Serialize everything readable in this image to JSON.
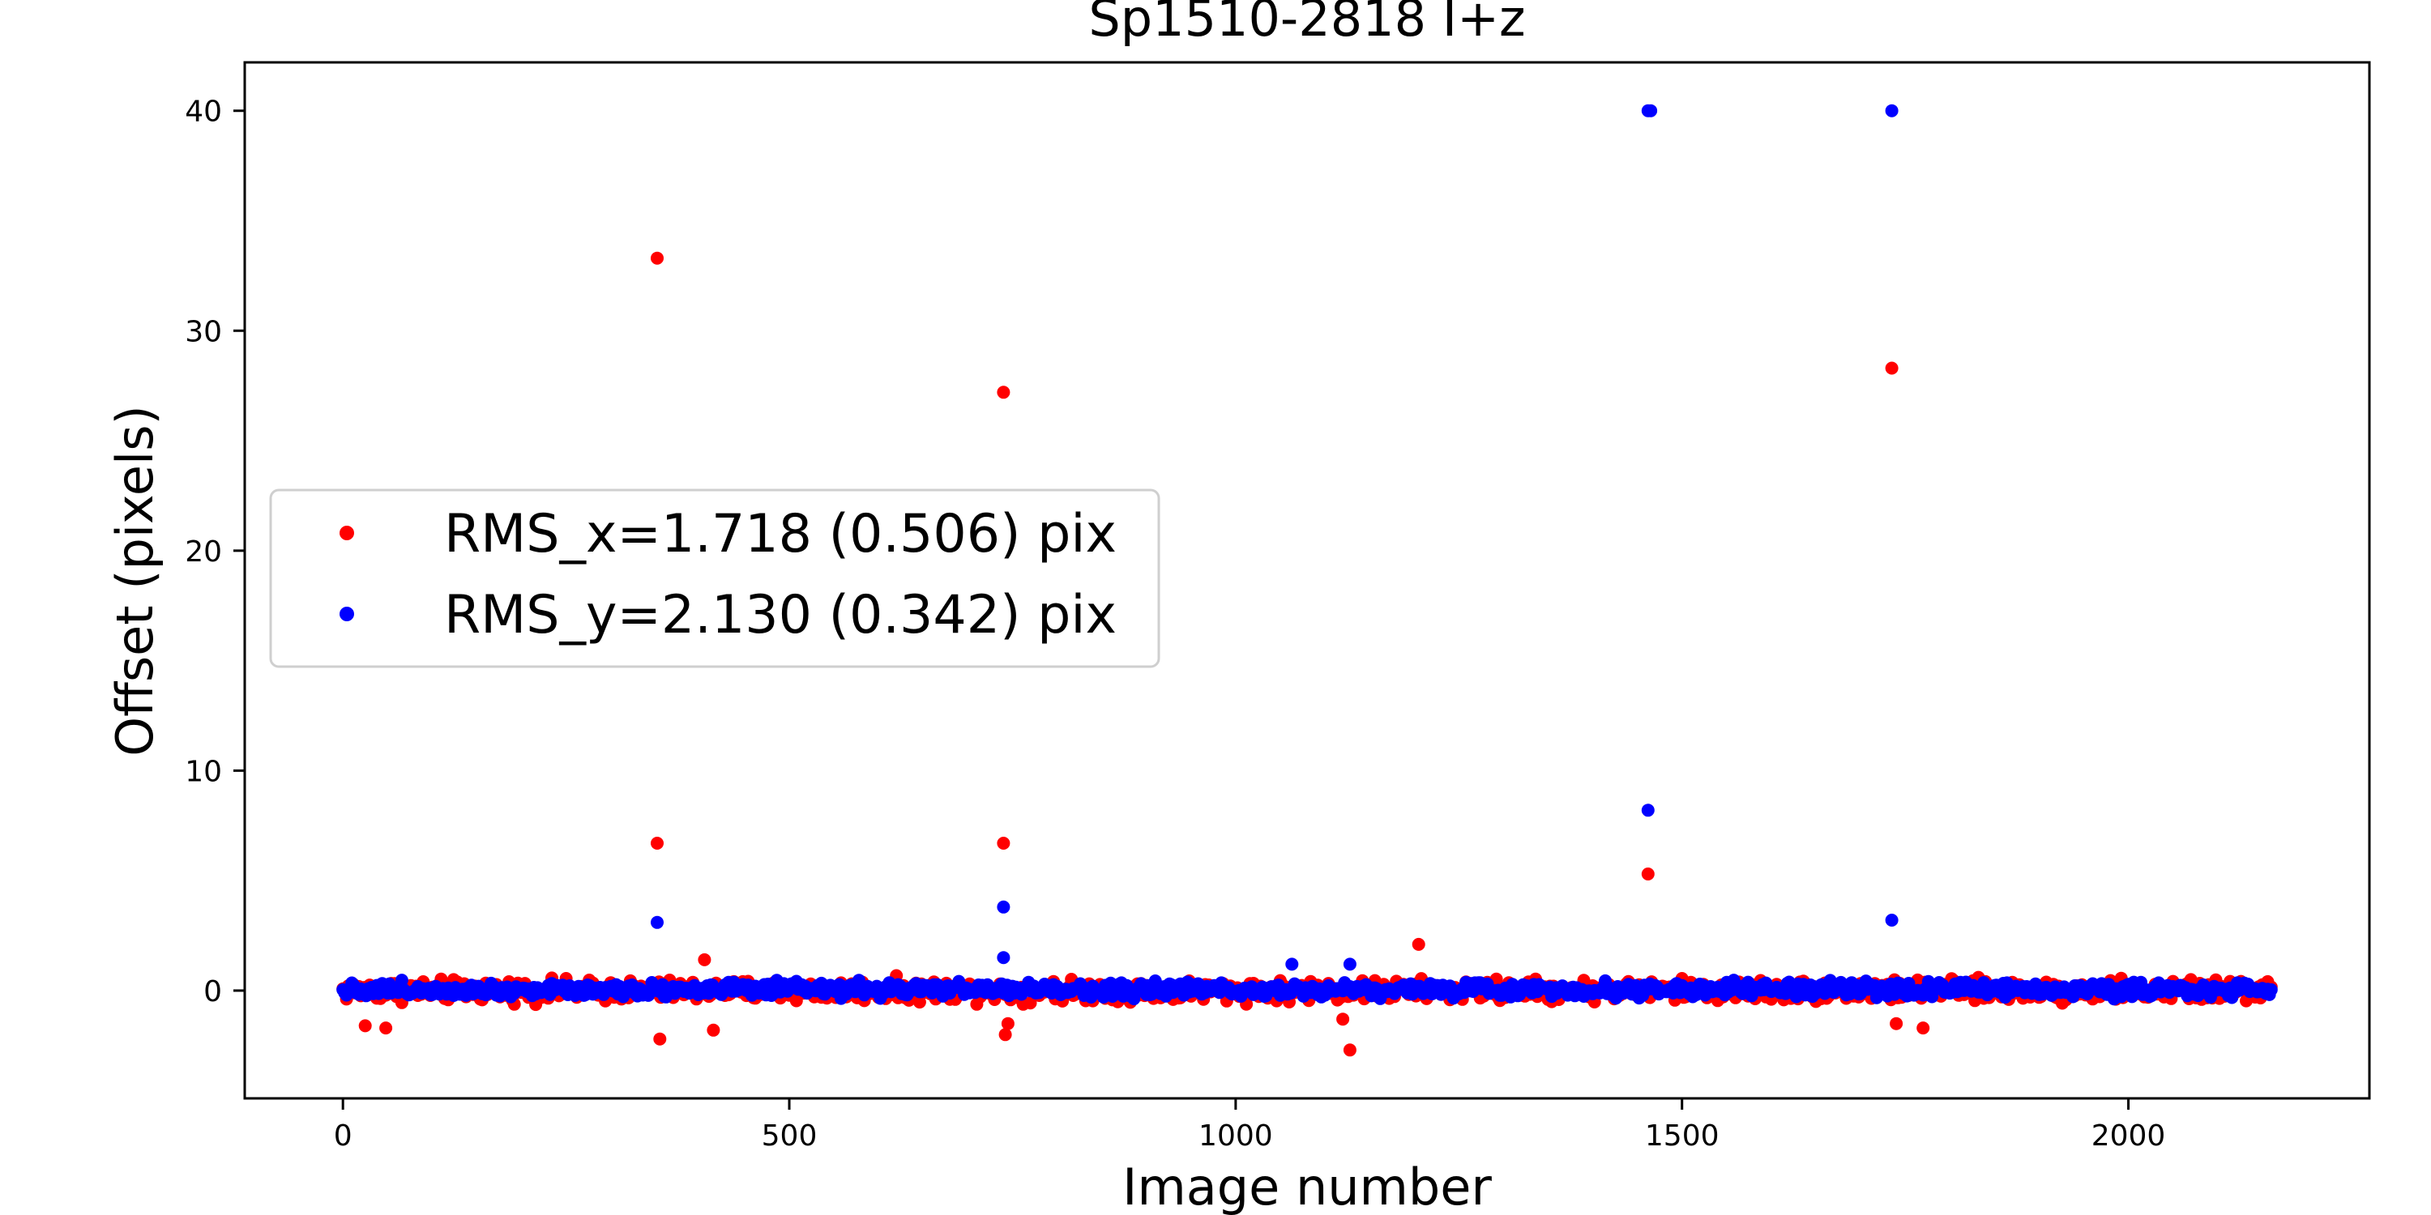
{
  "chart_data": {
    "type": "scatter",
    "title": "Sp1510-2818 I+z",
    "xlabel": "Image number",
    "ylabel": "Offset (pixels)",
    "xlim": [
      -110,
      2270
    ],
    "ylim": [
      -4.9,
      42.2
    ],
    "xticks": [
      0,
      500,
      1000,
      1500,
      2000
    ],
    "yticks": [
      0,
      10,
      20,
      30,
      40
    ],
    "grid": false,
    "legend_position": "center-left",
    "series": [
      {
        "name": "RMS_x=1.718 (0.506) pix",
        "color": "#ff0000",
        "outliers": [
          {
            "x": 352,
            "y": 33.3
          },
          {
            "x": 352,
            "y": 6.7
          },
          {
            "x": 355,
            "y": -2.2
          },
          {
            "x": 740,
            "y": 27.2
          },
          {
            "x": 740,
            "y": 6.7
          },
          {
            "x": 742,
            "y": -2.0
          },
          {
            "x": 1128,
            "y": -2.7
          },
          {
            "x": 1205,
            "y": 2.1
          },
          {
            "x": 1462,
            "y": 5.3
          },
          {
            "x": 1735,
            "y": 28.3
          },
          {
            "x": 1770,
            "y": -1.7
          },
          {
            "x": 25,
            "y": -1.6
          },
          {
            "x": 48,
            "y": -1.7
          },
          {
            "x": 415,
            "y": -1.8
          },
          {
            "x": 405,
            "y": 1.4
          },
          {
            "x": 745,
            "y": -1.5
          },
          {
            "x": 1120,
            "y": -1.3
          },
          {
            "x": 1740,
            "y": -1.5
          }
        ],
        "baseline": {
          "x_start": 0,
          "x_end": 2160,
          "mean": 0.0,
          "spread": 0.5
        }
      },
      {
        "name": "RMS_y=2.130 (0.342) pix",
        "color": "#0000ff",
        "outliers": [
          {
            "x": 1462,
            "y": 40.0
          },
          {
            "x": 1465,
            "y": 40.0
          },
          {
            "x": 1735,
            "y": 40.0
          },
          {
            "x": 1462,
            "y": 8.2
          },
          {
            "x": 352,
            "y": 3.1
          },
          {
            "x": 740,
            "y": 3.8
          },
          {
            "x": 740,
            "y": 1.5
          },
          {
            "x": 1735,
            "y": 3.2
          },
          {
            "x": 1063,
            "y": 1.2
          },
          {
            "x": 1128,
            "y": 1.2
          }
        ],
        "baseline": {
          "x_start": 0,
          "x_end": 2160,
          "mean": 0.05,
          "spread": 0.35
        }
      }
    ]
  }
}
